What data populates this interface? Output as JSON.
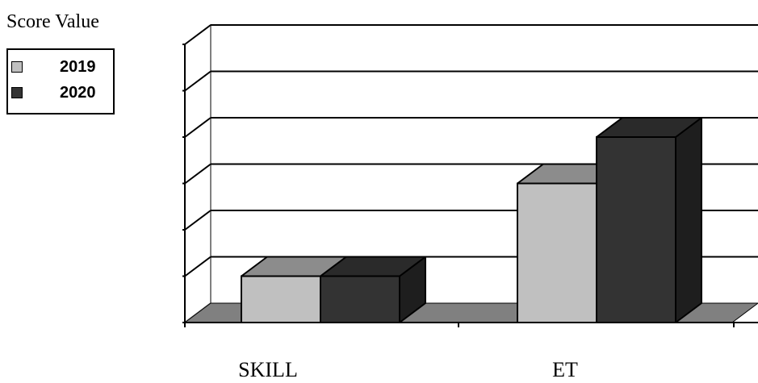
{
  "chart_data": {
    "type": "bar",
    "style": "3d",
    "ylabel": "Score Value",
    "categories": [
      "SKILL",
      "ET"
    ],
    "series": [
      {
        "name": "2019",
        "values": [
          1,
          3
        ],
        "color": "#c0c0c0",
        "top_color": "#8c8c8c",
        "side_color": "#6e6e6e"
      },
      {
        "name": "2020",
        "values": [
          1,
          4
        ],
        "color": "#333333",
        "top_color": "#2a2a2a",
        "side_color": "#1e1e1e"
      }
    ],
    "ylim": [
      0,
      6
    ],
    "y_tick_count": 7,
    "grid": true,
    "legend_position": "top-left",
    "colors": {
      "floor": "#808080",
      "wall_edge": "#808080",
      "gridline": "#000000",
      "axis": "#000000"
    }
  }
}
